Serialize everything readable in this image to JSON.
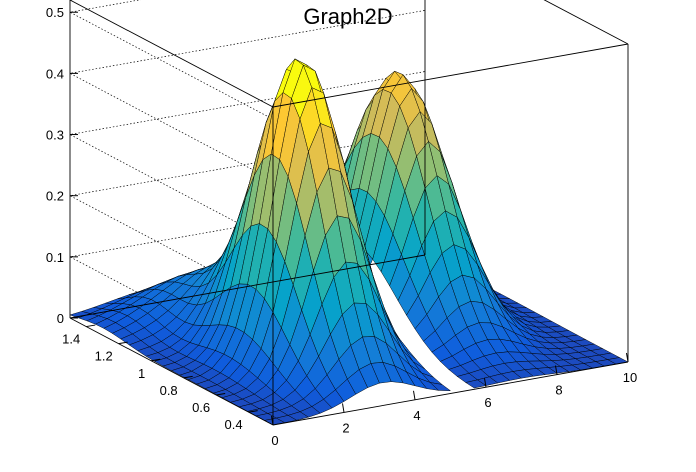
{
  "chart_data": {
    "type": "surface",
    "title": "Graph2D",
    "xlabel": "",
    "ylabel": "",
    "zlabel": "",
    "xlim": [
      0,
      10
    ],
    "ylim": [
      0.25,
      1.5
    ],
    "zlim": [
      0,
      0.52
    ],
    "x_ticks": [
      0,
      2,
      4,
      6,
      8,
      10
    ],
    "y_ticks": [
      0.4,
      0.6,
      0.8,
      1,
      1.2,
      1.4
    ],
    "z_ticks": [
      0,
      0.1,
      0.2,
      0.3,
      0.4,
      0.5
    ],
    "grid": true,
    "colormap": "parula",
    "colormap_stops": [
      "#352a87",
      "#0f5cdd",
      "#1481d6",
      "#06a4ca",
      "#2eb7a4",
      "#87bf77",
      "#d1bb59",
      "#fec832",
      "#f9fb0e"
    ],
    "peaks": [
      {
        "x": 3.1,
        "y": 0.75,
        "z": 0.5
      },
      {
        "x": 7.0,
        "y": 1.0,
        "z": 0.4
      },
      {
        "x": 2.5,
        "y": 1.3,
        "z": 0.06
      }
    ],
    "gap": {
      "x": [
        4.9,
        5.5
      ],
      "y": [
        0.25,
        0.85
      ]
    }
  }
}
